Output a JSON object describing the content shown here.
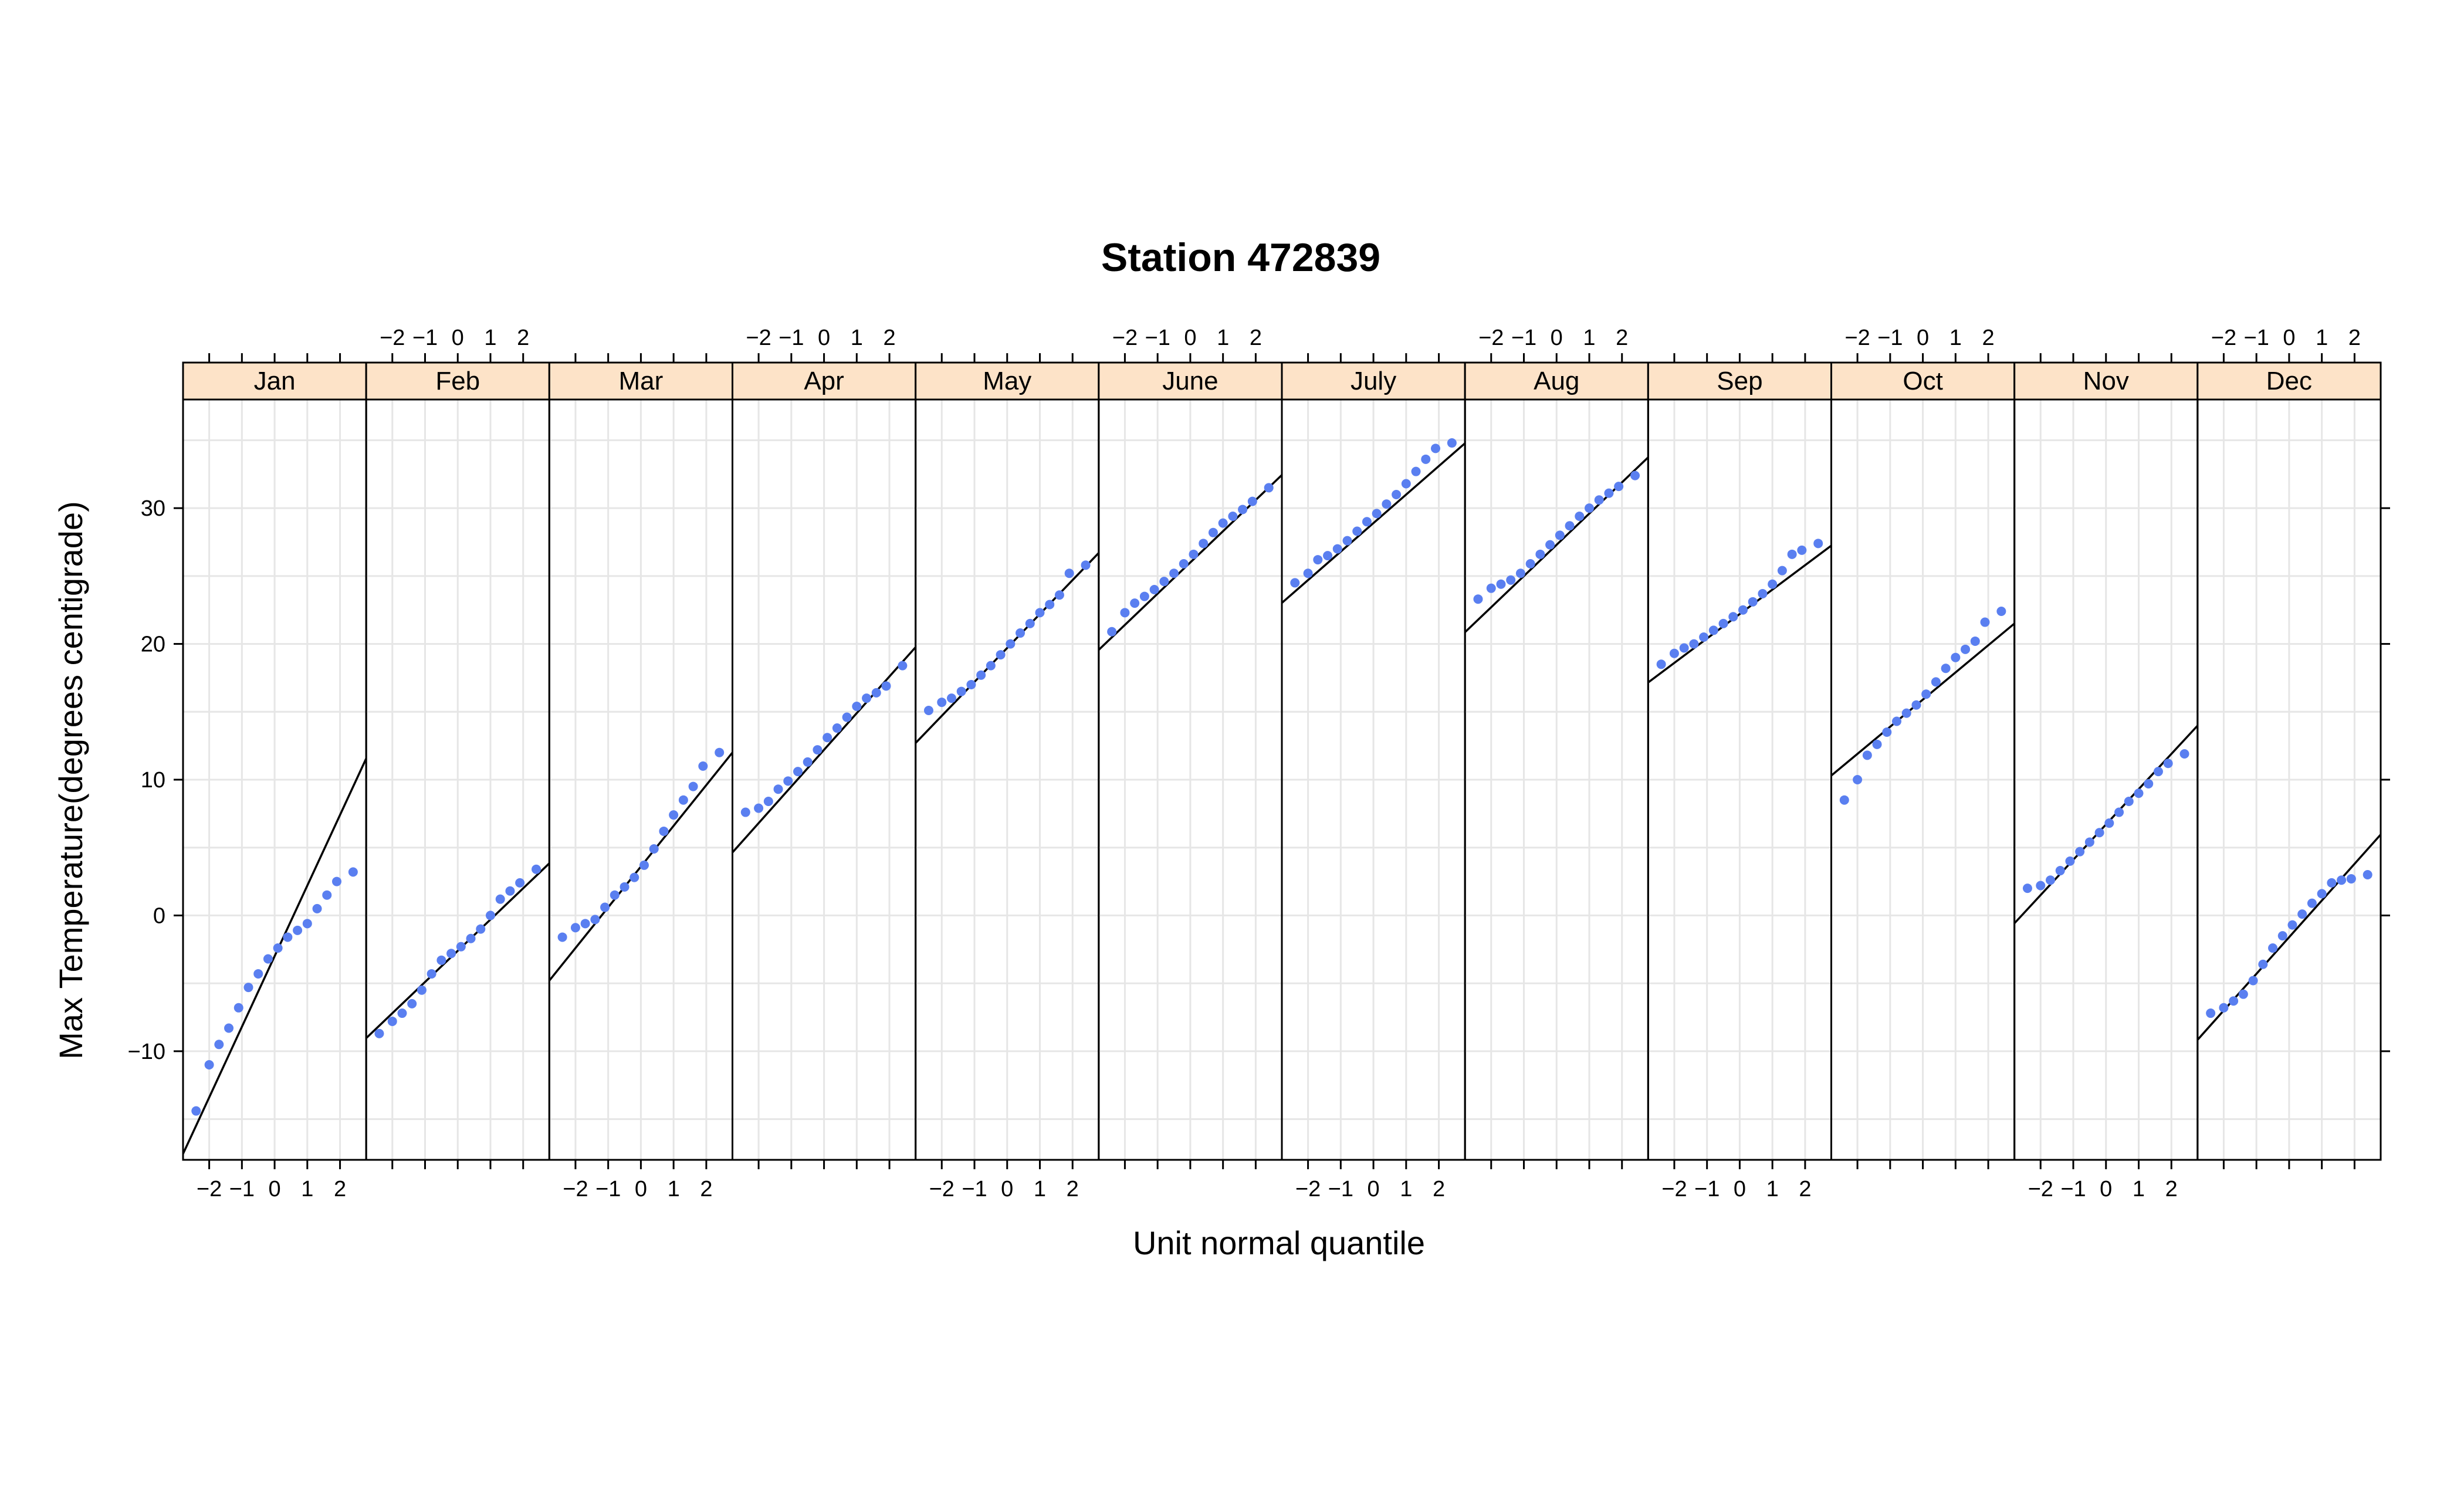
{
  "chart_data": {
    "type": "scatter",
    "title": "Station 472839",
    "xlabel": "Unit normal quantile",
    "ylabel": "Max Temperature(degrees centigrade)",
    "xlim": [
      -2.8,
      2.8
    ],
    "ylim": [
      -18,
      38
    ],
    "x_ticks": [
      -2,
      -1,
      0,
      1,
      2
    ],
    "y_ticks": [
      -10,
      0,
      10,
      20,
      30
    ],
    "grid": true,
    "colors": {
      "points": "#5a7ff0",
      "line": "#000000",
      "strip": "#fde3c8",
      "frame": "#000000",
      "grid": "#e6e6e6"
    },
    "panels": [
      {
        "label": "Jan",
        "mean": -3.0,
        "sd": 5.2,
        "points": [
          [
            -2.4,
            -14.4
          ],
          [
            -2.0,
            -11.0
          ],
          [
            -1.7,
            -9.5
          ],
          [
            -1.4,
            -8.3
          ],
          [
            -1.1,
            -6.8
          ],
          [
            -0.8,
            -5.3
          ],
          [
            -0.5,
            -4.3
          ],
          [
            -0.2,
            -3.2
          ],
          [
            0.1,
            -2.4
          ],
          [
            0.4,
            -1.6
          ],
          [
            0.7,
            -1.1
          ],
          [
            1.0,
            -0.6
          ],
          [
            1.3,
            0.5
          ],
          [
            1.6,
            1.5
          ],
          [
            1.9,
            2.5
          ],
          [
            2.4,
            3.2
          ]
        ]
      },
      {
        "label": "Feb",
        "mean": -2.6,
        "sd": 2.3,
        "points": [
          [
            -2.4,
            -8.7
          ],
          [
            -2.0,
            -7.8
          ],
          [
            -1.7,
            -7.2
          ],
          [
            -1.4,
            -6.5
          ],
          [
            -1.1,
            -5.5
          ],
          [
            -0.8,
            -4.3
          ],
          [
            -0.5,
            -3.3
          ],
          [
            -0.2,
            -2.8
          ],
          [
            0.1,
            -2.3
          ],
          [
            0.4,
            -1.7
          ],
          [
            0.7,
            -1.0
          ],
          [
            1.0,
            0.0
          ],
          [
            1.3,
            1.2
          ],
          [
            1.6,
            1.8
          ],
          [
            1.9,
            2.4
          ],
          [
            2.4,
            3.4
          ]
        ]
      },
      {
        "label": "Mar",
        "mean": 3.6,
        "sd": 3.0,
        "points": [
          [
            -2.4,
            -1.6
          ],
          [
            -2.0,
            -0.9
          ],
          [
            -1.7,
            -0.6
          ],
          [
            -1.4,
            -0.3
          ],
          [
            -1.1,
            0.6
          ],
          [
            -0.8,
            1.5
          ],
          [
            -0.5,
            2.1
          ],
          [
            -0.2,
            2.8
          ],
          [
            0.1,
            3.7
          ],
          [
            0.4,
            4.9
          ],
          [
            0.7,
            6.2
          ],
          [
            1.0,
            7.4
          ],
          [
            1.3,
            8.5
          ],
          [
            1.6,
            9.5
          ],
          [
            1.9,
            11.0
          ],
          [
            2.4,
            12.0
          ]
        ]
      },
      {
        "label": "Apr",
        "mean": 12.2,
        "sd": 2.7,
        "points": [
          [
            -2.4,
            7.6
          ],
          [
            -2.0,
            7.9
          ],
          [
            -1.7,
            8.4
          ],
          [
            -1.4,
            9.3
          ],
          [
            -1.1,
            9.9
          ],
          [
            -0.8,
            10.6
          ],
          [
            -0.5,
            11.3
          ],
          [
            -0.2,
            12.2
          ],
          [
            0.1,
            13.1
          ],
          [
            0.4,
            13.8
          ],
          [
            0.7,
            14.6
          ],
          [
            1.0,
            15.4
          ],
          [
            1.3,
            16.0
          ],
          [
            1.6,
            16.4
          ],
          [
            1.9,
            16.9
          ],
          [
            2.4,
            18.4
          ]
        ]
      },
      {
        "label": "May",
        "mean": 19.7,
        "sd": 2.5,
        "points": [
          [
            -2.4,
            15.1
          ],
          [
            -2.0,
            15.7
          ],
          [
            -1.7,
            16.0
          ],
          [
            -1.4,
            16.5
          ],
          [
            -1.1,
            17.0
          ],
          [
            -0.8,
            17.7
          ],
          [
            -0.5,
            18.4
          ],
          [
            -0.2,
            19.2
          ],
          [
            0.1,
            20.0
          ],
          [
            0.4,
            20.8
          ],
          [
            0.7,
            21.5
          ],
          [
            1.0,
            22.3
          ],
          [
            1.3,
            22.9
          ],
          [
            1.6,
            23.6
          ],
          [
            1.9,
            25.2
          ],
          [
            2.4,
            25.8
          ]
        ]
      },
      {
        "label": "June",
        "mean": 26.0,
        "sd": 2.3,
        "points": [
          [
            -2.4,
            20.9
          ],
          [
            -2.0,
            22.3
          ],
          [
            -1.7,
            23.0
          ],
          [
            -1.4,
            23.5
          ],
          [
            -1.1,
            24.0
          ],
          [
            -0.8,
            24.6
          ],
          [
            -0.5,
            25.2
          ],
          [
            -0.2,
            25.9
          ],
          [
            0.1,
            26.6
          ],
          [
            0.4,
            27.4
          ],
          [
            0.7,
            28.2
          ],
          [
            1.0,
            28.9
          ],
          [
            1.3,
            29.4
          ],
          [
            1.6,
            29.9
          ],
          [
            1.9,
            30.5
          ],
          [
            2.4,
            31.5
          ]
        ]
      },
      {
        "label": "July",
        "mean": 28.9,
        "sd": 2.1,
        "points": [
          [
            -2.4,
            24.5
          ],
          [
            -2.0,
            25.2
          ],
          [
            -1.7,
            26.2
          ],
          [
            -1.4,
            26.5
          ],
          [
            -1.1,
            27.0
          ],
          [
            -0.8,
            27.6
          ],
          [
            -0.5,
            28.3
          ],
          [
            -0.2,
            29.0
          ],
          [
            0.1,
            29.6
          ],
          [
            0.4,
            30.3
          ],
          [
            0.7,
            31.0
          ],
          [
            1.0,
            31.8
          ],
          [
            1.3,
            32.7
          ],
          [
            1.6,
            33.6
          ],
          [
            1.9,
            34.4
          ],
          [
            2.4,
            34.8
          ]
        ]
      },
      {
        "label": "Aug",
        "mean": 27.3,
        "sd": 2.3,
        "points": [
          [
            -2.4,
            23.3
          ],
          [
            -2.0,
            24.1
          ],
          [
            -1.7,
            24.4
          ],
          [
            -1.4,
            24.7
          ],
          [
            -1.1,
            25.2
          ],
          [
            -0.8,
            25.9
          ],
          [
            -0.5,
            26.6
          ],
          [
            -0.2,
            27.3
          ],
          [
            0.1,
            28.0
          ],
          [
            0.4,
            28.7
          ],
          [
            0.7,
            29.4
          ],
          [
            1.0,
            30.0
          ],
          [
            1.3,
            30.6
          ],
          [
            1.6,
            31.1
          ],
          [
            1.9,
            31.6
          ],
          [
            2.4,
            32.4
          ]
        ]
      },
      {
        "label": "Sep",
        "mean": 22.2,
        "sd": 1.8,
        "points": [
          [
            -2.4,
            18.5
          ],
          [
            -2.0,
            19.3
          ],
          [
            -1.7,
            19.7
          ],
          [
            -1.4,
            20.0
          ],
          [
            -1.1,
            20.5
          ],
          [
            -0.8,
            21.0
          ],
          [
            -0.5,
            21.5
          ],
          [
            -0.2,
            22.0
          ],
          [
            0.1,
            22.5
          ],
          [
            0.4,
            23.1
          ],
          [
            0.7,
            23.7
          ],
          [
            1.0,
            24.4
          ],
          [
            1.3,
            25.4
          ],
          [
            1.6,
            26.6
          ],
          [
            1.9,
            26.9
          ],
          [
            2.4,
            27.4
          ]
        ]
      },
      {
        "label": "Oct",
        "mean": 15.9,
        "sd": 2.0,
        "points": [
          [
            -2.4,
            8.5
          ],
          [
            -2.0,
            10.0
          ],
          [
            -1.7,
            11.8
          ],
          [
            -1.4,
            12.6
          ],
          [
            -1.1,
            13.5
          ],
          [
            -0.8,
            14.3
          ],
          [
            -0.5,
            14.9
          ],
          [
            -0.2,
            15.5
          ],
          [
            0.1,
            16.3
          ],
          [
            0.4,
            17.2
          ],
          [
            0.7,
            18.2
          ],
          [
            1.0,
            19.0
          ],
          [
            1.3,
            19.6
          ],
          [
            1.6,
            20.2
          ],
          [
            1.9,
            21.6
          ],
          [
            2.4,
            22.4
          ]
        ]
      },
      {
        "label": "Nov",
        "mean": 6.7,
        "sd": 2.6,
        "points": [
          [
            -2.4,
            2.0
          ],
          [
            -2.0,
            2.2
          ],
          [
            -1.7,
            2.6
          ],
          [
            -1.4,
            3.3
          ],
          [
            -1.1,
            4.0
          ],
          [
            -0.8,
            4.7
          ],
          [
            -0.5,
            5.4
          ],
          [
            -0.2,
            6.1
          ],
          [
            0.1,
            6.8
          ],
          [
            0.4,
            7.6
          ],
          [
            0.7,
            8.4
          ],
          [
            1.0,
            9.0
          ],
          [
            1.3,
            9.7
          ],
          [
            1.6,
            10.6
          ],
          [
            1.9,
            11.2
          ],
          [
            2.4,
            11.9
          ]
        ]
      },
      {
        "label": "Dec",
        "mean": -1.6,
        "sd": 2.7,
        "points": [
          [
            -2.4,
            -7.2
          ],
          [
            -2.0,
            -6.8
          ],
          [
            -1.7,
            -6.3
          ],
          [
            -1.4,
            -5.8
          ],
          [
            -1.1,
            -4.8
          ],
          [
            -0.8,
            -3.6
          ],
          [
            -0.5,
            -2.4
          ],
          [
            -0.2,
            -1.5
          ],
          [
            0.1,
            -0.7
          ],
          [
            0.4,
            0.1
          ],
          [
            0.7,
            0.9
          ],
          [
            1.0,
            1.6
          ],
          [
            1.3,
            2.4
          ],
          [
            1.6,
            2.6
          ],
          [
            1.9,
            2.7
          ],
          [
            2.4,
            3.0
          ]
        ]
      }
    ]
  }
}
